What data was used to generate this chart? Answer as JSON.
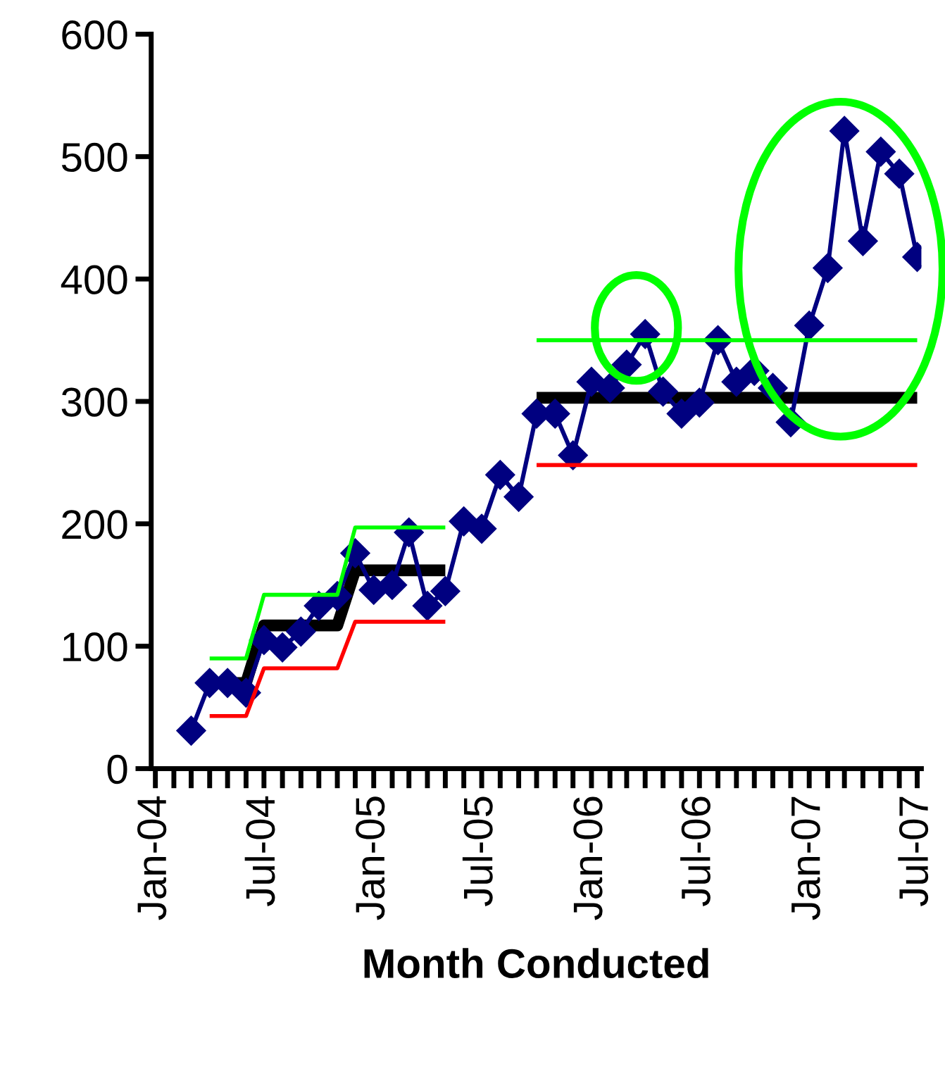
{
  "chart_data": {
    "type": "line",
    "xlabel": "Month Conducted",
    "x": [
      "2004-03",
      "2004-04",
      "2004-05",
      "2004-06",
      "2004-07",
      "2004-08",
      "2004-09",
      "2004-10",
      "2004-11",
      "2004-12",
      "2005-01",
      "2005-02",
      "2005-03",
      "2005-04",
      "2005-05",
      "2005-06",
      "2005-07",
      "2005-08",
      "2005-09",
      "2005-10",
      "2005-11",
      "2005-12",
      "2006-01",
      "2006-02",
      "2006-03",
      "2006-04",
      "2006-05",
      "2006-06",
      "2006-07",
      "2006-08",
      "2006-09",
      "2006-10",
      "2006-11",
      "2006-12",
      "2007-01",
      "2007-02",
      "2007-03",
      "2007-04",
      "2007-05",
      "2007-06",
      "2007-07"
    ],
    "series": [
      {
        "color": "#ff0000",
        "marker": "none",
        "values": [
          null,
          43,
          43,
          43,
          82,
          82,
          82,
          82,
          82,
          120,
          120,
          120,
          120,
          120,
          120,
          null,
          null,
          null,
          null,
          248,
          248,
          248,
          248,
          248,
          248,
          248,
          248,
          248,
          248,
          248,
          248,
          248,
          248,
          248,
          248,
          248,
          248,
          248,
          248,
          248,
          248
        ]
      },
      {
        "color": "#00ff00",
        "marker": "none",
        "values": [
          null,
          90,
          90,
          90,
          142,
          142,
          142,
          142,
          142,
          197,
          197,
          197,
          197,
          197,
          197,
          null,
          null,
          null,
          null,
          350,
          350,
          350,
          350,
          350,
          350,
          350,
          350,
          350,
          350,
          350,
          350,
          350,
          350,
          350,
          350,
          350,
          350,
          350,
          350,
          350,
          350
        ]
      },
      {
        "color": "#000000",
        "marker": "none",
        "values": [
          null,
          70,
          70,
          70,
          117,
          117,
          117,
          117,
          117,
          162,
          162,
          162,
          162,
          162,
          162,
          null,
          null,
          null,
          null,
          303,
          303,
          303,
          303,
          303,
          303,
          303,
          303,
          303,
          303,
          303,
          303,
          303,
          303,
          303,
          303,
          303,
          303,
          303,
          303,
          303,
          303
        ]
      },
      {
        "color": "#000080",
        "marker": "diamond",
        "values": [
          31,
          70,
          70,
          62,
          105,
          99,
          112,
          133,
          141,
          176,
          146,
          150,
          193,
          133,
          145,
          202,
          196,
          240,
          222,
          290,
          290,
          256,
          316,
          311,
          330,
          355,
          308,
          290,
          299,
          350,
          316,
          325,
          311,
          283,
          362,
          409,
          521,
          431,
          504,
          486,
          418
        ]
      }
    ],
    "xlim": [
      "2003-12-25",
      "2007-07-08"
    ],
    "xticks": [
      {
        "value": "2004-01",
        "label": "Jan-04"
      },
      {
        "value": "2004-02",
        "label": null
      },
      {
        "value": "2004-03",
        "label": null
      },
      {
        "value": "2004-04",
        "label": null
      },
      {
        "value": "2004-05",
        "label": null
      },
      {
        "value": "2004-06",
        "label": null
      },
      {
        "value": "2004-07",
        "label": "Jul-04"
      },
      {
        "value": "2004-08",
        "label": null
      },
      {
        "value": "2004-09",
        "label": null
      },
      {
        "value": "2004-10",
        "label": null
      },
      {
        "value": "2004-11",
        "label": null
      },
      {
        "value": "2004-12",
        "label": null
      },
      {
        "value": "2005-01",
        "label": "Jan-05"
      },
      {
        "value": "2005-02",
        "label": null
      },
      {
        "value": "2005-03",
        "label": null
      },
      {
        "value": "2005-04",
        "label": null
      },
      {
        "value": "2005-05",
        "label": null
      },
      {
        "value": "2005-06",
        "label": null
      },
      {
        "value": "2005-07",
        "label": "Jul-05"
      },
      {
        "value": "2005-08",
        "label": null
      },
      {
        "value": "2005-09",
        "label": null
      },
      {
        "value": "2005-10",
        "label": null
      },
      {
        "value": "2005-11",
        "label": null
      },
      {
        "value": "2005-12",
        "label": null
      },
      {
        "value": "2006-01",
        "label": "Jan-06"
      },
      {
        "value": "2006-02",
        "label": null
      },
      {
        "value": "2006-03",
        "label": null
      },
      {
        "value": "2006-04",
        "label": null
      },
      {
        "value": "2006-05",
        "label": null
      },
      {
        "value": "2006-06",
        "label": null
      },
      {
        "value": "2006-07",
        "label": "Jul-06"
      },
      {
        "value": "2006-08",
        "label": null
      },
      {
        "value": "2006-09",
        "label": null
      },
      {
        "value": "2006-10",
        "label": null
      },
      {
        "value": "2006-11",
        "label": null
      },
      {
        "value": "2006-12",
        "label": null
      },
      {
        "value": "2007-01",
        "label": "Jan-07"
      },
      {
        "value": "2007-02",
        "label": null
      },
      {
        "value": "2007-03",
        "label": null
      },
      {
        "value": "2007-04",
        "label": null
      },
      {
        "value": "2007-05",
        "label": null
      },
      {
        "value": "2007-06",
        "label": null
      },
      {
        "value": "2007-07",
        "label": "Jul-07"
      }
    ],
    "ylim": [
      0,
      600
    ],
    "yticks": [
      0,
      100,
      200,
      300,
      400,
      500,
      600
    ],
    "grid": false,
    "legend": false,
    "line_style": "solid"
  }
}
